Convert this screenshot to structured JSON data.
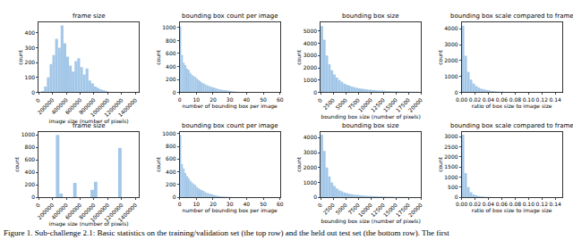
{
  "chart_data": [
    {
      "type": "histogram",
      "title": "frame size",
      "x_label": "image size (number of pixels)",
      "y_label": "count",
      "color": "#a3c7e8",
      "grid": false,
      "bins": [
        40000,
        80000,
        120000,
        160000,
        200000,
        240000,
        280000,
        320000,
        360000,
        400000,
        440000,
        480000,
        520000,
        560000,
        600000,
        640000,
        680000,
        720000,
        760000,
        800000,
        840000,
        880000,
        920000,
        960000,
        1000000
      ],
      "values": [
        10,
        40,
        100,
        190,
        250,
        360,
        300,
        450,
        330,
        240,
        180,
        140,
        210,
        230,
        170,
        120,
        160,
        80,
        60,
        40,
        30,
        20,
        15,
        10
      ],
      "xlim": [
        0,
        1450000
      ],
      "xticks": [
        0,
        200000,
        400000,
        600000,
        800000,
        1000000,
        1200000,
        1400000
      ],
      "ylim": [
        0,
        470
      ],
      "yticks": [
        0,
        100,
        200,
        300,
        400
      ]
    },
    {
      "type": "histogram",
      "title": "bounding box count per image",
      "x_label": "number of bounding box per image",
      "y_label": "count",
      "color": "#a3c7e8",
      "grid": false,
      "bins": [
        0,
        1,
        2,
        3,
        4,
        5,
        6,
        7,
        8,
        9,
        10,
        11,
        12,
        13,
        14,
        15,
        16,
        17,
        18,
        19,
        20,
        21,
        22,
        23,
        24,
        25,
        26,
        27,
        28,
        29,
        30,
        31,
        32,
        33,
        34,
        35,
        36,
        37,
        38,
        39,
        40,
        41,
        42,
        43,
        44,
        45
      ],
      "values": [
        1020,
        580,
        460,
        420,
        370,
        350,
        300,
        270,
        250,
        240,
        210,
        190,
        170,
        150,
        140,
        120,
        110,
        100,
        90,
        80,
        75,
        65,
        60,
        50,
        45,
        40,
        35,
        30,
        28,
        25,
        20,
        18,
        15,
        12,
        10,
        8,
        6,
        5,
        4,
        3,
        3,
        2,
        2,
        1,
        1
      ],
      "xlim": [
        0,
        60
      ],
      "xticks": [
        0,
        10,
        20,
        30,
        40,
        50,
        60
      ],
      "ylim": [
        0,
        1080
      ],
      "yticks": [
        0,
        200,
        400,
        600,
        800,
        1000
      ]
    },
    {
      "type": "histogram",
      "title": "bounding box size",
      "x_label": "bounding box size (number of pixels)",
      "y_label": "count",
      "color": "#a3c7e8",
      "grid": false,
      "bins": [
        0,
        500,
        1000,
        1500,
        2000,
        2500,
        3000,
        3500,
        4000,
        4500,
        5000,
        5500,
        6000,
        6500,
        7000,
        7500,
        8000,
        8500,
        9000,
        9500,
        10000,
        10500,
        11000,
        11500,
        12000,
        12500,
        13000,
        13500,
        14000,
        14500,
        15000,
        15500,
        16000,
        16500,
        17000,
        17500,
        18000,
        18500,
        19000,
        19500,
        20000
      ],
      "values": [
        5400,
        4300,
        3000,
        2300,
        1800,
        1450,
        1200,
        1000,
        850,
        720,
        620,
        540,
        470,
        420,
        370,
        330,
        300,
        270,
        240,
        220,
        200,
        180,
        165,
        150,
        140,
        130,
        120,
        110,
        100,
        95,
        90,
        85,
        80,
        75,
        70,
        65,
        60,
        55,
        50,
        45
      ],
      "xlim": [
        0,
        20000
      ],
      "xticks": [
        0,
        2500,
        5000,
        7500,
        10000,
        12500,
        15000,
        17500,
        20000
      ],
      "ylim": [
        0,
        5700
      ],
      "yticks": [
        0,
        1000,
        2000,
        3000,
        4000,
        5000
      ]
    },
    {
      "type": "histogram",
      "title": "bounding box scale compared to frame",
      "x_label": "ratio of box size to image size",
      "y_label": "count",
      "color": "#a3c7e8",
      "grid": false,
      "bins": [
        0,
        0.004,
        0.008,
        0.012,
        0.016,
        0.02,
        0.024,
        0.028,
        0.032,
        0.036,
        0.04,
        0.044,
        0.048,
        0.052,
        0.056,
        0.06,
        0.064,
        0.068,
        0.072,
        0.076,
        0.08,
        0.084,
        0.088,
        0.092,
        0.096,
        0.1,
        0.104,
        0.108,
        0.112,
        0.116,
        0.12,
        0.124,
        0.128,
        0.132,
        0.136,
        0.14,
        0.144,
        0.148
      ],
      "values": [
        4200,
        2300,
        1300,
        800,
        550,
        400,
        300,
        230,
        180,
        140,
        110,
        90,
        75,
        60,
        50,
        42,
        35,
        30,
        25,
        20,
        18,
        15,
        12,
        10,
        8,
        7,
        6,
        5,
        4,
        4,
        3,
        3,
        2,
        2,
        1,
        1,
        1
      ],
      "xlim": [
        0,
        0.15
      ],
      "xticks": [
        {
          "value": 0,
          "label": "0.00"
        },
        {
          "value": 0.02,
          "label": "0.02"
        },
        {
          "value": 0.04,
          "label": "0.04"
        },
        {
          "value": 0.06,
          "label": "0.06"
        },
        {
          "value": 0.08,
          "label": "0.08"
        },
        {
          "value": 0.1,
          "label": "0.10"
        },
        {
          "value": 0.12,
          "label": "0.12"
        },
        {
          "value": 0.14,
          "label": "0.14"
        }
      ],
      "ylim": [
        0,
        4400
      ],
      "yticks": [
        0,
        1000,
        2000,
        3000,
        4000
      ]
    },
    {
      "type": "histogram",
      "title": "frame size",
      "x_label": "image size (number of pixels)",
      "y_label": "count",
      "color": "#a3c7e8",
      "grid": false,
      "bins": [
        250000,
        300000,
        350000,
        400000,
        450000,
        500000,
        550000,
        600000,
        650000,
        700000,
        750000,
        800000,
        850000,
        900000,
        950000,
        1000000,
        1050000,
        1100000,
        1150000,
        1200000,
        1250000
      ],
      "values": [
        1000,
        60,
        0,
        0,
        0,
        230,
        0,
        0,
        0,
        0,
        120,
        250,
        0,
        0,
        0,
        0,
        0,
        0,
        790,
        0
      ],
      "xlim": [
        0,
        1450000
      ],
      "xticks": [
        0,
        200000,
        400000,
        600000,
        800000,
        1000000,
        1200000,
        1400000
      ],
      "ylim": [
        0,
        1050
      ],
      "yticks": [
        0,
        200,
        400,
        600,
        800,
        1000
      ]
    },
    {
      "type": "histogram",
      "title": "bounding box count per image",
      "x_label": "number of bounding box per image",
      "y_label": "count",
      "color": "#a3c7e8",
      "grid": false,
      "bins": [
        0,
        1,
        2,
        3,
        4,
        5,
        6,
        7,
        8,
        9,
        10,
        11,
        12,
        13,
        14,
        15,
        16,
        17,
        18,
        19,
        20,
        21,
        22,
        23,
        24,
        25,
        26,
        27,
        28,
        29,
        30,
        31,
        32,
        33,
        34,
        35
      ],
      "values": [
        980,
        520,
        450,
        380,
        330,
        300,
        260,
        230,
        210,
        190,
        160,
        140,
        120,
        110,
        95,
        80,
        70,
        60,
        50,
        45,
        38,
        30,
        25,
        20,
        15,
        12,
        10,
        8,
        6,
        5,
        4,
        3,
        2,
        2,
        1
      ],
      "xlim": [
        0,
        60
      ],
      "xticks": [
        0,
        10,
        20,
        30,
        40,
        50,
        60
      ],
      "ylim": [
        0,
        1030
      ],
      "yticks": [
        0,
        200,
        400,
        600,
        800,
        1000
      ]
    },
    {
      "type": "histogram",
      "title": "bounding box size",
      "x_label": "bounding box size (number of pixels)",
      "y_label": "count",
      "color": "#a3c7e8",
      "grid": false,
      "bins": [
        0,
        500,
        1000,
        1500,
        2000,
        2500,
        3000,
        3500,
        4000,
        4500,
        5000,
        5500,
        6000,
        6500,
        7000,
        7500,
        8000,
        8500,
        9000,
        9500,
        10000,
        10500,
        11000,
        11500,
        12000,
        12500,
        13000,
        13500,
        14000,
        14500,
        15000,
        15500,
        16000,
        16500,
        17000,
        17500,
        18000,
        18500,
        19000,
        19500,
        20000
      ],
      "values": [
        4200,
        3100,
        2000,
        1400,
        1000,
        760,
        600,
        480,
        400,
        330,
        280,
        240,
        210,
        180,
        160,
        140,
        125,
        110,
        100,
        90,
        80,
        72,
        65,
        58,
        52,
        47,
        42,
        38,
        34,
        30,
        27,
        24,
        21,
        19,
        17,
        15,
        13,
        11,
        10,
        9
      ],
      "xlim": [
        0,
        20000
      ],
      "xticks": [
        0,
        2500,
        5000,
        7500,
        10000,
        12500,
        15000,
        17500,
        20000
      ],
      "ylim": [
        0,
        4400
      ],
      "yticks": [
        0,
        1000,
        2000,
        3000,
        4000
      ]
    },
    {
      "type": "histogram",
      "title": "bounding box scale compared to frame",
      "x_label": "ratio of box size to image size",
      "y_label": "count",
      "color": "#a3c7e8",
      "grid": false,
      "bins": [
        0,
        0.004,
        0.008,
        0.012,
        0.016,
        0.02,
        0.024,
        0.028,
        0.032,
        0.036,
        0.04,
        0.044,
        0.048,
        0.052,
        0.056,
        0.06,
        0.064,
        0.068,
        0.072,
        0.076,
        0.08,
        0.084,
        0.088,
        0.092,
        0.096,
        0.1,
        0.104,
        0.108,
        0.112,
        0.116,
        0.12,
        0.124,
        0.128,
        0.132,
        0.136,
        0.14,
        0.144,
        0.148
      ],
      "values": [
        3100,
        1200,
        500,
        250,
        140,
        90,
        60,
        40,
        30,
        22,
        16,
        12,
        9,
        7,
        5,
        4,
        3,
        3,
        2,
        2,
        1,
        1,
        1,
        1,
        0,
        0,
        0,
        0,
        0,
        0,
        0,
        0,
        0,
        0,
        0,
        0,
        0
      ],
      "xlim": [
        0,
        0.15
      ],
      "xticks": [
        {
          "value": 0,
          "label": "0.00"
        },
        {
          "value": 0.02,
          "label": "0.02"
        },
        {
          "value": 0.04,
          "label": "0.04"
        },
        {
          "value": 0.06,
          "label": "0.06"
        },
        {
          "value": 0.08,
          "label": "0.08"
        },
        {
          "value": 0.1,
          "label": "0.10"
        },
        {
          "value": 0.12,
          "label": "0.12"
        },
        {
          "value": 0.14,
          "label": "0.14"
        }
      ],
      "ylim": [
        0,
        3250
      ],
      "yticks": [
        0,
        500,
        1000,
        1500,
        2000,
        2500,
        3000
      ]
    }
  ],
  "caption": "Figure 1. Sub-challenge 2.1: Basic statistics on the training/validation set (the top row) and the held out test set (the bottom row). The first"
}
